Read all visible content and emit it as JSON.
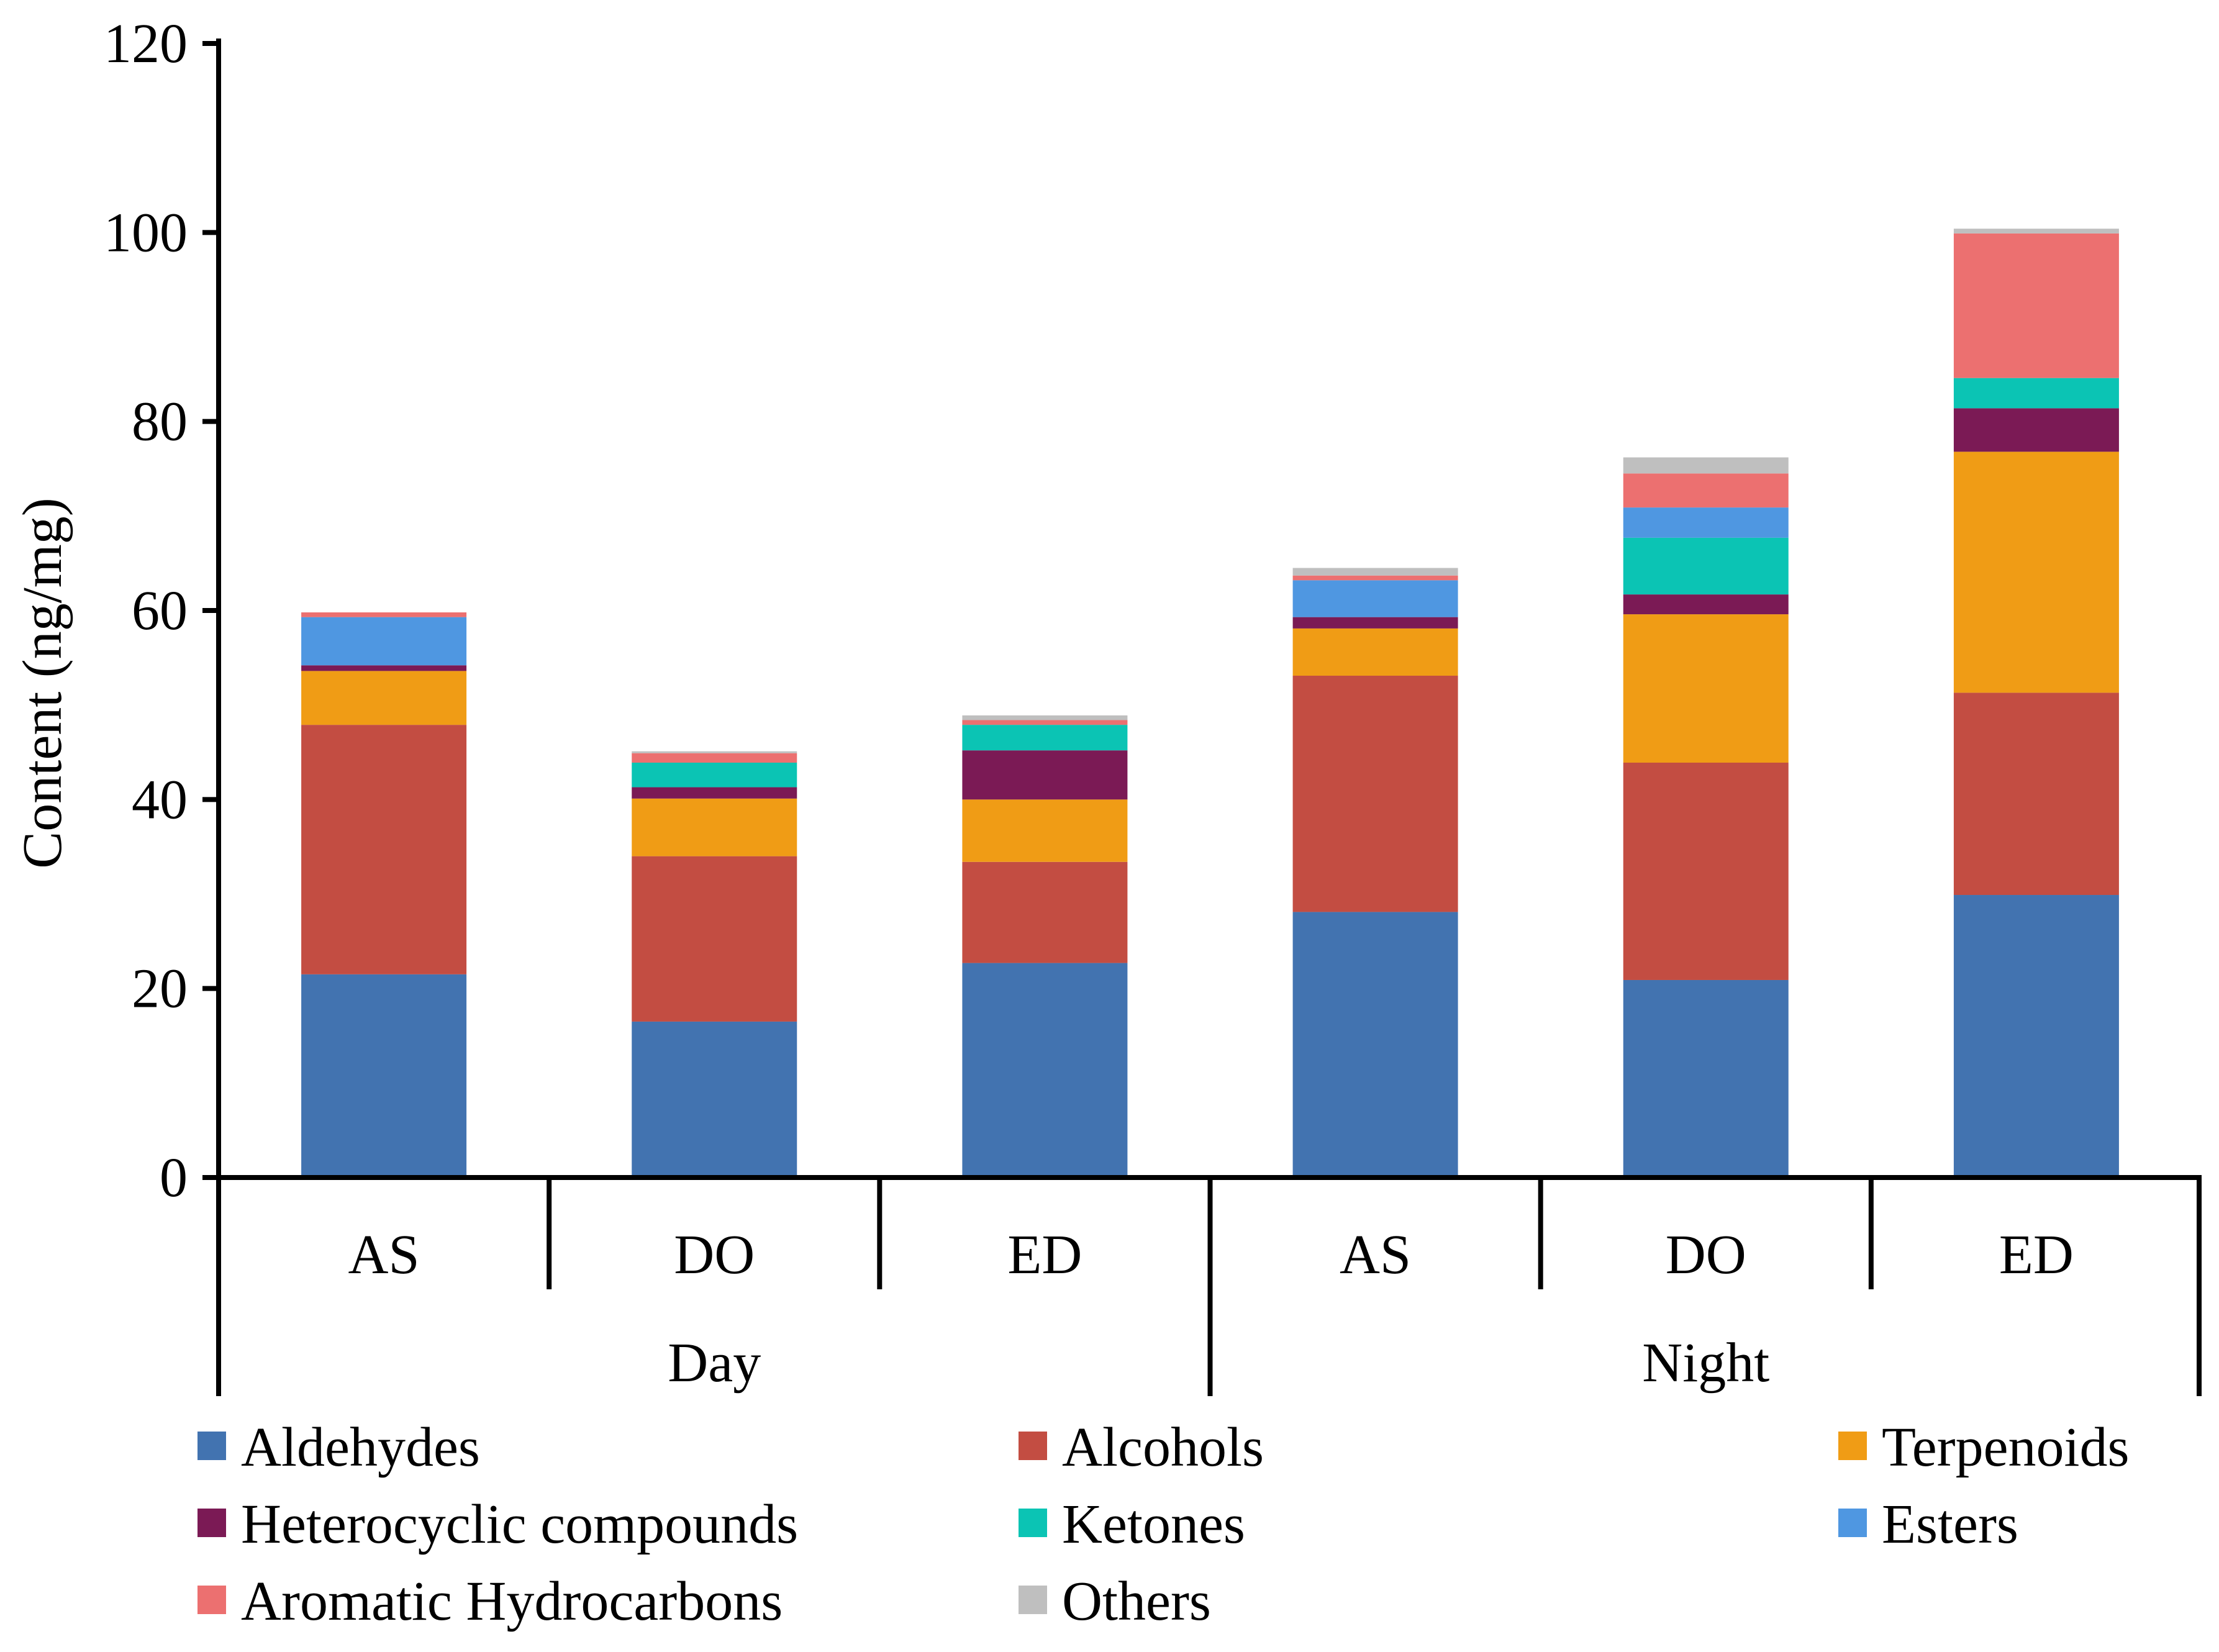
{
  "chart_data": {
    "type": "bar",
    "stacked": true,
    "title": "",
    "xlabel": "",
    "ylabel": "Content (ng/mg)",
    "ylim": [
      0,
      120
    ],
    "yticks": [
      0,
      20,
      40,
      60,
      80,
      100,
      120
    ],
    "grid": false,
    "legend_position": "bottom",
    "categories": [
      "AS",
      "DO",
      "ED",
      "AS",
      "DO",
      "ED"
    ],
    "groups": [
      {
        "label": "Day",
        "start": 0,
        "end": 2
      },
      {
        "label": "Night",
        "start": 3,
        "end": 5
      }
    ],
    "series": [
      {
        "name": "Aldehydes",
        "color": "#4273B0",
        "values": [
          21.5,
          16.5,
          22.7,
          28.1,
          20.9,
          29.9
        ]
      },
      {
        "name": "Alcohols",
        "color": "#C34D42",
        "values": [
          26.4,
          17.5,
          10.7,
          25.0,
          23.0,
          21.4
        ]
      },
      {
        "name": "Terpenoids",
        "color": "#F09C15",
        "values": [
          5.7,
          6.1,
          6.6,
          5.0,
          15.7,
          25.5
        ]
      },
      {
        "name": "Heterocyclic compounds",
        "color": "#7B1A55",
        "values": [
          0.6,
          1.2,
          5.2,
          1.2,
          2.1,
          4.6
        ]
      },
      {
        "name": "Ketones",
        "color": "#0BC4B4",
        "values": [
          0.0,
          2.6,
          2.7,
          0.0,
          6.0,
          3.2
        ]
      },
      {
        "name": "Esters",
        "color": "#4F97E1",
        "values": [
          5.1,
          0.0,
          0.0,
          3.9,
          3.2,
          0.0
        ]
      },
      {
        "name": "Aromatic Hydrocarbons",
        "color": "#EC7070",
        "values": [
          0.5,
          1.0,
          0.5,
          0.5,
          3.6,
          15.3
        ]
      },
      {
        "name": "Others",
        "color": "#BFBFBF",
        "values": [
          0.0,
          0.2,
          0.5,
          0.8,
          1.7,
          0.5
        ]
      }
    ]
  }
}
